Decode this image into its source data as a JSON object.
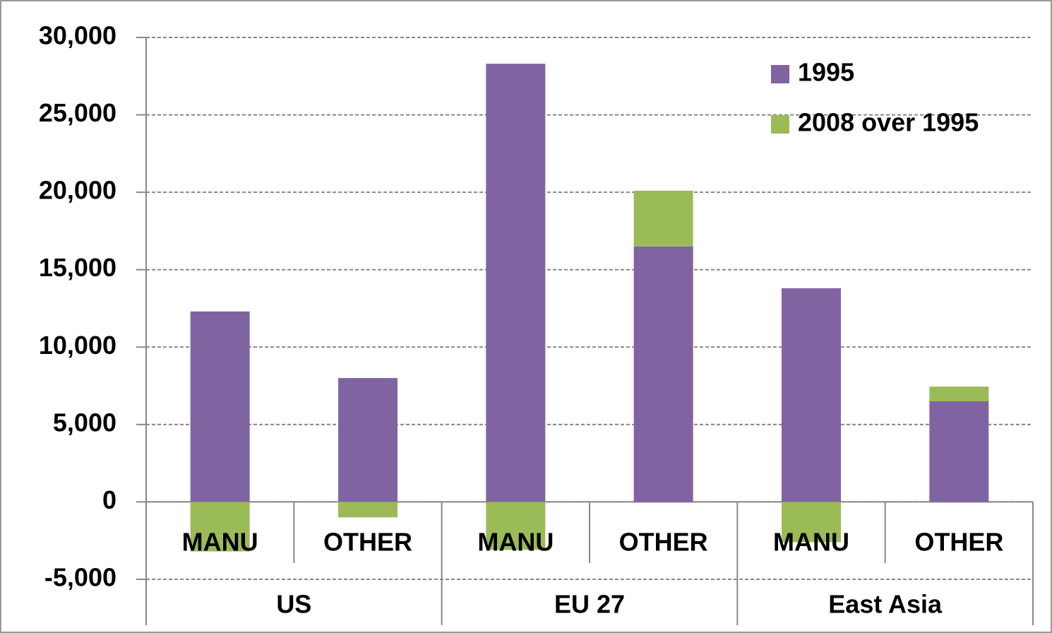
{
  "chart_data": {
    "type": "stacked_bar",
    "categories": [
      "MANU",
      "OTHER",
      "MANU",
      "OTHER",
      "MANU",
      "OTHER"
    ],
    "category_groups": [
      "US",
      "EU 27",
      "East Asia"
    ],
    "series": [
      {
        "name": "1995",
        "color": "#8064a2",
        "values": [
          12300,
          8000,
          28300,
          16500,
          13800,
          6500
        ]
      },
      {
        "name": "2008 over 1995",
        "color": "#9bbb59",
        "values": [
          -3200,
          -1000,
          -3100,
          3600,
          -2600,
          950
        ]
      }
    ],
    "ylim": [
      -5000,
      30000
    ],
    "yticks": [
      {
        "value": -5000,
        "label": "-5,000"
      },
      0,
      {
        "value": 5000,
        "label": "5,000"
      },
      {
        "value": 10000,
        "label": "10,000"
      },
      {
        "value": 15000,
        "label": "15,000"
      },
      {
        "value": 20000,
        "label": "20,000"
      },
      {
        "value": 25000,
        "label": "25,000"
      },
      {
        "value": 30000,
        "label": "30,000"
      }
    ],
    "grid": true,
    "legend": "top-right"
  }
}
